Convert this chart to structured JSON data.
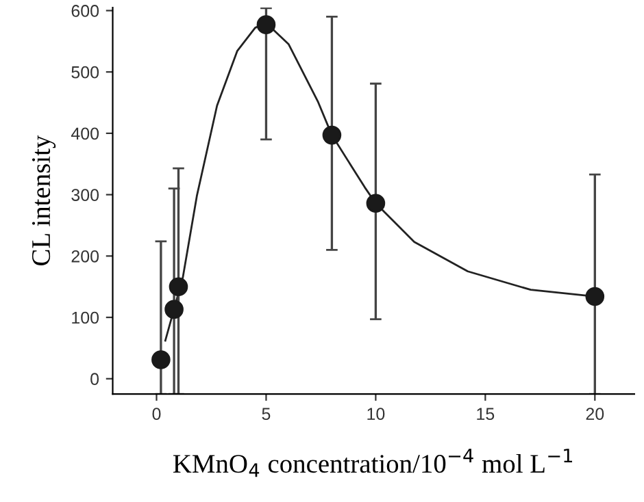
{
  "chart_data": {
    "type": "scatter",
    "xlabel": "KMnO$_{4}$ concentration/10$^{−4}$ mol L$^{−1}$",
    "ylabel": "CL intensity",
    "xlim": [
      -2,
      21.8
    ],
    "ylim": [
      -25,
      605
    ],
    "xticks": [
      0,
      5,
      10,
      15,
      20
    ],
    "yticks": [
      0,
      100,
      200,
      300,
      400,
      500,
      600
    ],
    "grid": false,
    "legend": false,
    "series": [
      {
        "type": "line",
        "color": "#222222",
        "marker": "none",
        "line_style": "solid",
        "x": [
          0.4,
          1.2,
          1.84,
          2.76,
          3.68,
          4.5,
          5,
          6.03,
          7.36,
          8,
          9.5,
          10,
          11.76,
          14.2,
          17.07,
          20
        ],
        "values": [
          62,
          165,
          298,
          445,
          534,
          572,
          580,
          545,
          452,
          397,
          312,
          286,
          223,
          175,
          145,
          134
        ]
      },
      {
        "color": "#1a1a1a",
        "marker": "circle",
        "x": [
          0.2,
          0.8,
          1,
          5,
          8,
          10,
          20
        ],
        "values": [
          31,
          113,
          150,
          577,
          397,
          286,
          134
        ],
        "errors": [
          [
            -25,
            224
          ],
          [
            -25,
            310
          ],
          [
            -25,
            343
          ],
          [
            390,
            604
          ],
          [
            210,
            590
          ],
          [
            97,
            481
          ],
          [
            -25,
            333
          ]
        ]
      }
    ]
  }
}
